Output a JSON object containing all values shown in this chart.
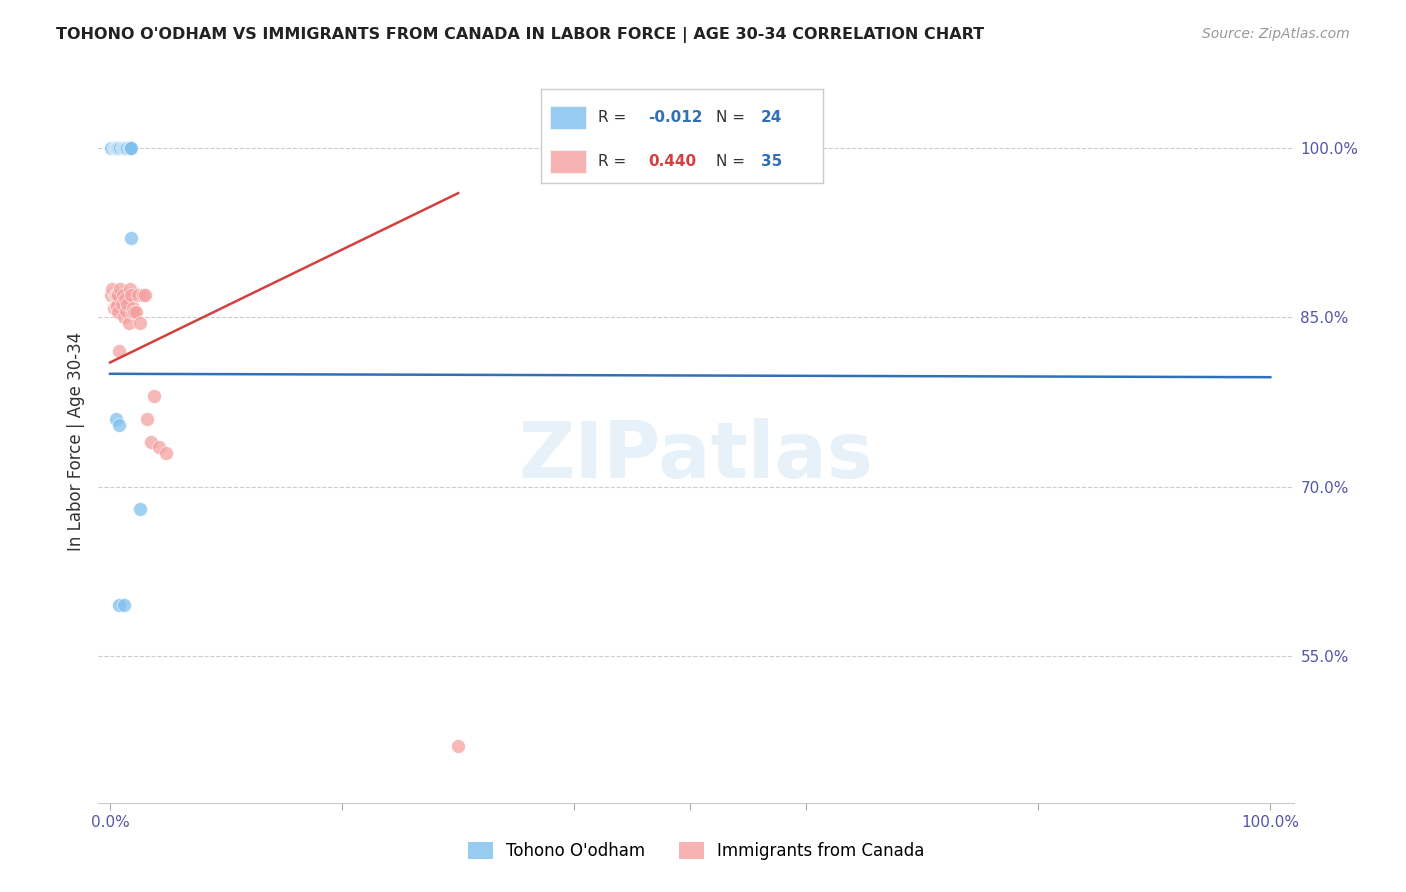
{
  "title": "TOHONO O'ODHAM VS IMMIGRANTS FROM CANADA IN LABOR FORCE | AGE 30-34 CORRELATION CHART",
  "source": "Source: ZipAtlas.com",
  "ylabel": "In Labor Force | Age 30-34",
  "y_tick_vals": [
    0.55,
    0.7,
    0.85,
    1.0
  ],
  "y_tick_labels": [
    "55.0%",
    "70.0%",
    "85.0%",
    "100.0%"
  ],
  "x_tick_labels": [
    "0.0%",
    "100.0%"
  ],
  "x_tick_vals": [
    0.0,
    1.0
  ],
  "blue_color": "#7fbfed",
  "pink_color": "#f5a0a0",
  "blue_line_color": "#3070b8",
  "pink_line_color": "#d44040",
  "blue_R": -0.012,
  "blue_N": 24,
  "pink_R": 0.44,
  "pink_N": 35,
  "blue_x": [
    0.001,
    0.003,
    0.004,
    0.005,
    0.006,
    0.006,
    0.007,
    0.008,
    0.009,
    0.01,
    0.011,
    0.012,
    0.013,
    0.014,
    0.015,
    0.016,
    0.017,
    0.018,
    0.005,
    0.008,
    0.018,
    0.026,
    0.008,
    0.012
  ],
  "blue_y": [
    1.0,
    1.0,
    1.0,
    1.0,
    1.0,
    1.0,
    1.0,
    1.0,
    1.0,
    1.0,
    1.0,
    1.0,
    1.0,
    1.0,
    1.0,
    1.0,
    1.0,
    1.0,
    0.76,
    0.755,
    0.92,
    0.68,
    0.595,
    0.595
  ],
  "pink_x": [
    0.001,
    0.002,
    0.003,
    0.004,
    0.005,
    0.005,
    0.006,
    0.006,
    0.007,
    0.007,
    0.008,
    0.009,
    0.01,
    0.011,
    0.012,
    0.013,
    0.014,
    0.015,
    0.016,
    0.017,
    0.018,
    0.019,
    0.02,
    0.021,
    0.022,
    0.024,
    0.026,
    0.028,
    0.03,
    0.032,
    0.035,
    0.038,
    0.042,
    0.048,
    0.3
  ],
  "pink_y": [
    0.87,
    0.875,
    0.858,
    0.87,
    0.87,
    0.86,
    0.87,
    0.86,
    0.87,
    0.855,
    0.82,
    0.875,
    0.862,
    0.87,
    0.85,
    0.866,
    0.856,
    0.862,
    0.845,
    0.875,
    0.87,
    0.855,
    0.858,
    0.855,
    0.855,
    0.87,
    0.845,
    0.87,
    0.87,
    0.76,
    0.74,
    0.78,
    0.735,
    0.73,
    0.47
  ],
  "blue_line_x": [
    0.0,
    1.0
  ],
  "blue_line_y": [
    0.8,
    0.797
  ],
  "pink_line_x": [
    0.0,
    0.3
  ],
  "pink_line_y": [
    0.82,
    0.95
  ],
  "watermark": "ZIPatlas",
  "xlim": [
    -0.01,
    1.02
  ],
  "ylim": [
    0.42,
    1.06
  ]
}
